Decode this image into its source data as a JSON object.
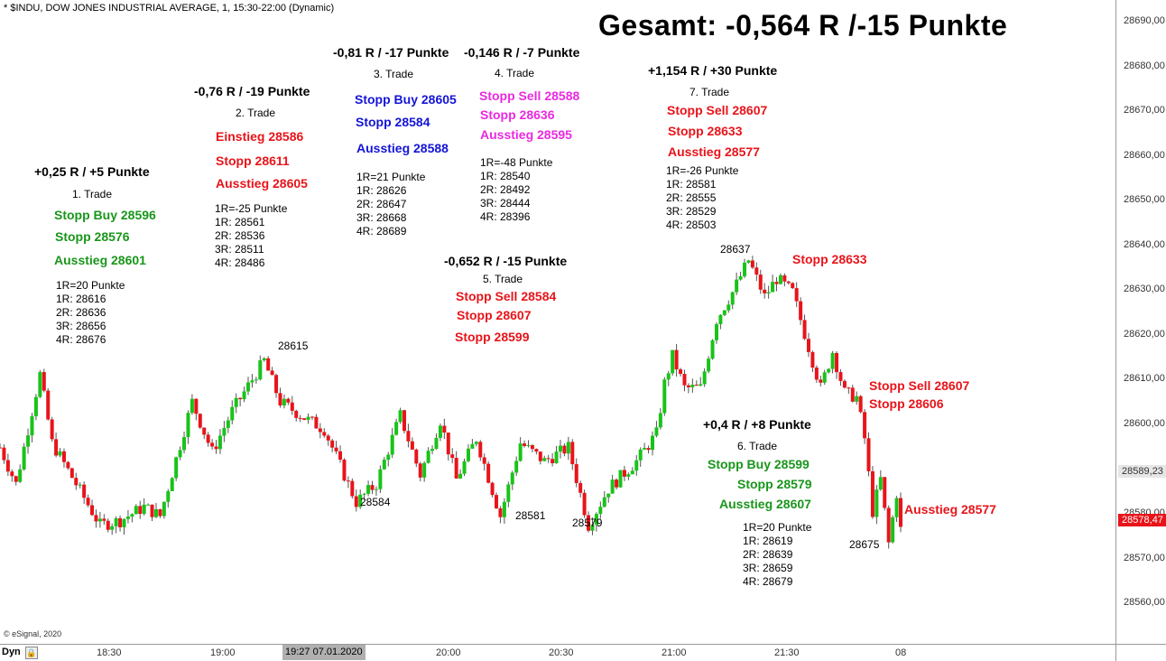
{
  "header": {
    "title": "* $INDU, DOW JONES INDUSTRIAL AVERAGE, 1, 15:30-22:00 (Dynamic)",
    "headline": "Gesamt: -0,564 R /-15 Punkte",
    "copyright": "© eSignal, 2020"
  },
  "colors": {
    "up": "#19c319",
    "down": "#e8141a",
    "wick": "#555555"
  },
  "trades": [
    {
      "result": "+0,25 R / +5 Punkte",
      "number": "1. Trade",
      "levels": [
        {
          "text": "Stopp Buy 28596",
          "color": "green"
        },
        {
          "text": "Stopp 28576",
          "color": "green"
        },
        {
          "text": "Ausstieg 28601",
          "color": "green"
        }
      ],
      "info": [
        "1R=20 Punkte",
        "1R: 28616",
        "2R: 28636",
        "3R: 28656",
        "4R: 28676"
      ]
    },
    {
      "result": "-0,76 R / -19 Punkte",
      "number": "2. Trade",
      "levels": [
        {
          "text": "Einstieg 28586",
          "color": "red"
        },
        {
          "text": "Stopp 28611",
          "color": "red"
        },
        {
          "text": "Ausstieg 28605",
          "color": "red"
        }
      ],
      "info": [
        "1R=-25 Punkte",
        "1R: 28561",
        "2R: 28536",
        "3R: 28511",
        "4R: 28486"
      ]
    },
    {
      "result": "-0,81 R / -17 Punkte",
      "number": "3. Trade",
      "levels": [
        {
          "text": "Stopp Buy 28605",
          "color": "blue"
        },
        {
          "text": "Stopp 28584",
          "color": "blue"
        },
        {
          "text": "Ausstieg 28588",
          "color": "blue"
        }
      ],
      "info": [
        "1R=21 Punkte",
        "1R: 28626",
        "2R: 28647",
        "3R: 28668",
        "4R: 28689"
      ]
    },
    {
      "result": "-0,146 R / -7 Punkte",
      "number": "4. Trade",
      "levels": [
        {
          "text": "Stopp Sell 28588",
          "color": "magenta"
        },
        {
          "text": "Stopp 28636",
          "color": "magenta"
        },
        {
          "text": "Ausstieg 28595",
          "color": "magenta"
        }
      ],
      "info": [
        "1R=-48 Punkte",
        "1R: 28540",
        "2R: 28492",
        "3R: 28444",
        "4R: 28396"
      ]
    },
    {
      "result": "-0,652 R / -15 Punkte",
      "number": "5. Trade",
      "levels": [
        {
          "text": "Stopp Sell 28584",
          "color": "red"
        },
        {
          "text": "Stopp 28607",
          "color": "red"
        },
        {
          "text": "Stopp 28599",
          "color": "red"
        }
      ],
      "info": []
    },
    {
      "result": "+0,4 R / +8 Punkte",
      "number": "6. Trade",
      "levels": [
        {
          "text": "Stopp Buy 28599",
          "color": "green"
        },
        {
          "text": "Stopp 28579",
          "color": "green"
        },
        {
          "text": "Ausstieg 28607",
          "color": "green"
        }
      ],
      "info": [
        "1R=20 Punkte",
        "1R: 28619",
        "2R: 28639",
        "3R: 28659",
        "4R: 28679"
      ]
    },
    {
      "result": "+1,154 R / +30 Punkte",
      "number": "7. Trade",
      "levels": [
        {
          "text": "Stopp Sell 28607",
          "color": "red"
        },
        {
          "text": "Stopp 28633",
          "color": "red"
        },
        {
          "text": "Ausstieg 28577",
          "color": "red"
        }
      ],
      "info": [
        "1R=-26 Punkte",
        "1R: 28581",
        "2R: 28555",
        "3R: 28529",
        "4R: 28503"
      ]
    }
  ],
  "side_notes": {
    "stopp_top": "Stopp 28633",
    "stopp_sell": "Stopp Sell 28607",
    "stopp_mid": "Stopp 28606",
    "ausstieg": "Ausstieg 28577"
  },
  "price_labels": [
    "28615",
    "28584",
    "28581",
    "28579",
    "28637",
    "28675"
  ],
  "price_axis": {
    "ticks": [
      "28690,00",
      "28680,00",
      "28670,00",
      "28660,00",
      "28650,00",
      "28640,00",
      "28630,00",
      "28620,00",
      "28610,00",
      "28600,00",
      "28580,00",
      "28570,00",
      "28560,00"
    ],
    "current": "28589,23",
    "last": "28578,47"
  },
  "time_axis": {
    "mode": "Dyn",
    "ticks": [
      "18:30",
      "19:00",
      "20:00",
      "20:30",
      "21:00",
      "21:30",
      "08"
    ],
    "cursor": "19:27 07.01.2020"
  },
  "chart_data": {
    "type": "candlestick",
    "title": "* $INDU, DOW JONES INDUSTRIAL AVERAGE, 1, 15:30-22:00 (Dynamic)",
    "ylim": [
      28553,
      28694
    ],
    "interval_minutes": 1,
    "x_range": [
      "18:15",
      "22:00"
    ],
    "close_path": [
      {
        "t": "18:15",
        "price": 28596
      },
      {
        "t": "18:19",
        "price": 28588
      },
      {
        "t": "18:25",
        "price": 28612
      },
      {
        "t": "18:28",
        "price": 28597
      },
      {
        "t": "18:34",
        "price": 28588
      },
      {
        "t": "18:40",
        "price": 28579
      },
      {
        "t": "18:45",
        "price": 28580
      },
      {
        "t": "18:51",
        "price": 28583
      },
      {
        "t": "18:55",
        "price": 28581
      },
      {
        "t": "19:03",
        "price": 28606
      },
      {
        "t": "19:08",
        "price": 28595
      },
      {
        "t": "19:13",
        "price": 28604
      },
      {
        "t": "19:21",
        "price": 28615
      },
      {
        "t": "19:25",
        "price": 28606
      },
      {
        "t": "19:32",
        "price": 28602
      },
      {
        "t": "19:36",
        "price": 28600
      },
      {
        "t": "19:44",
        "price": 28584
      },
      {
        "t": "19:49",
        "price": 28588
      },
      {
        "t": "19:55",
        "price": 28603
      },
      {
        "t": "20:00",
        "price": 28590
      },
      {
        "t": "20:05",
        "price": 28602
      },
      {
        "t": "20:09",
        "price": 28589
      },
      {
        "t": "20:14",
        "price": 28598
      },
      {
        "t": "20:20",
        "price": 28581
      },
      {
        "t": "20:25",
        "price": 28597
      },
      {
        "t": "20:31",
        "price": 28593
      },
      {
        "t": "20:37",
        "price": 28596
      },
      {
        "t": "20:42",
        "price": 28579
      },
      {
        "t": "20:47",
        "price": 28587
      },
      {
        "t": "20:54",
        "price": 28593
      },
      {
        "t": "20:59",
        "price": 28599
      },
      {
        "t": "21:01",
        "price": 28610
      },
      {
        "t": "21:03",
        "price": 28616
      },
      {
        "t": "21:06",
        "price": 28609
      },
      {
        "t": "21:10",
        "price": 28609
      },
      {
        "t": "21:14",
        "price": 28624
      },
      {
        "t": "21:18",
        "price": 28630
      },
      {
        "t": "21:22",
        "price": 28637
      },
      {
        "t": "21:26",
        "price": 28629
      },
      {
        "t": "21:29",
        "price": 28633
      },
      {
        "t": "21:33",
        "price": 28630
      },
      {
        "t": "21:37",
        "price": 28618
      },
      {
        "t": "21:40",
        "price": 28609
      },
      {
        "t": "21:43",
        "price": 28617
      },
      {
        "t": "21:46",
        "price": 28608
      },
      {
        "t": "21:49",
        "price": 28607
      },
      {
        "t": "21:51",
        "price": 28598
      },
      {
        "t": "21:53",
        "price": 28582
      },
      {
        "t": "21:55",
        "price": 28589
      },
      {
        "t": "21:57",
        "price": 28575
      },
      {
        "t": "21:59",
        "price": 28586
      },
      {
        "t": "22:00",
        "price": 28578
      }
    ]
  }
}
